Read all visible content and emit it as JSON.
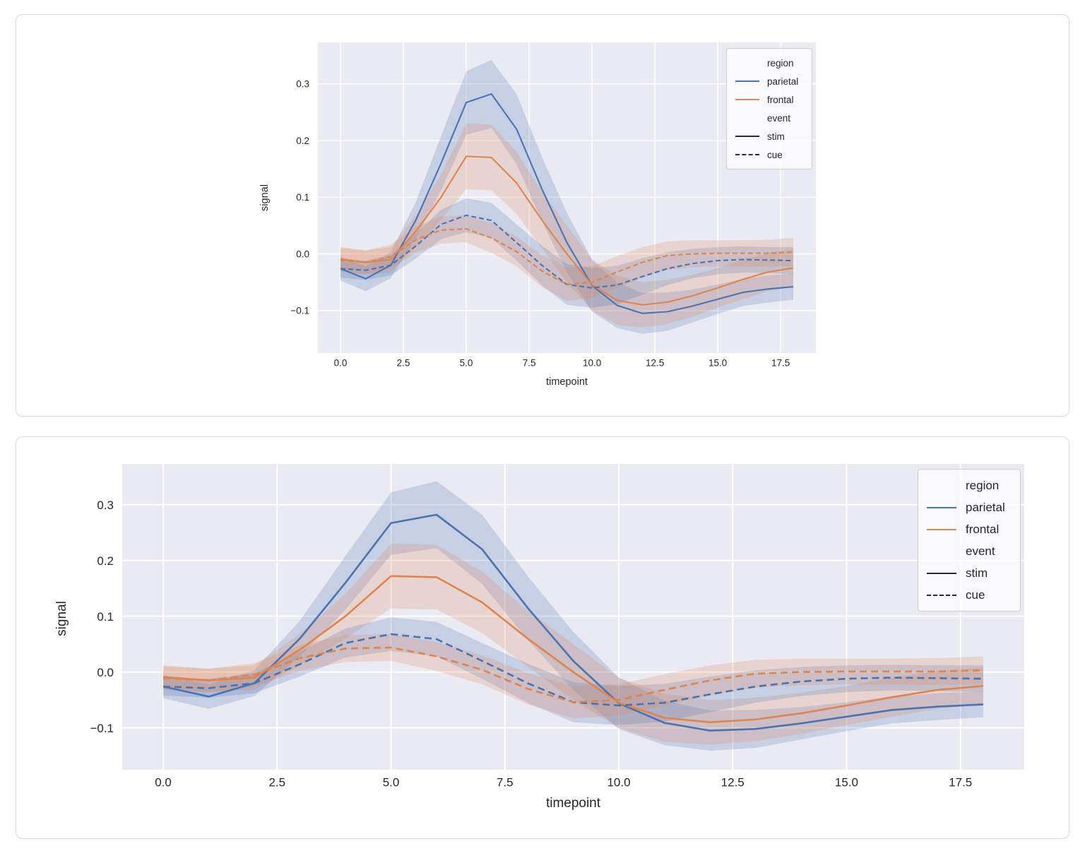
{
  "figure": {
    "panels": [
      {
        "name": "top-chart",
        "description": "small centered line chart"
      },
      {
        "name": "bottom-chart",
        "description": "large full-width line chart"
      }
    ]
  },
  "chart_data": {
    "type": "line",
    "title": "",
    "xlabel": "timepoint",
    "ylabel": "signal",
    "x": [
      0,
      1,
      2,
      3,
      4,
      5,
      6,
      7,
      8,
      9,
      10,
      11,
      12,
      13,
      14,
      15,
      16,
      17,
      18
    ],
    "xlim": [
      -0.9,
      18.9
    ],
    "ylim": [
      -0.175,
      0.373
    ],
    "grid": true,
    "legend_position": "upper right",
    "xtick_values": [
      0,
      2.5,
      5,
      7.5,
      10,
      12.5,
      15,
      17.5
    ],
    "xtick_labels": [
      "0.0",
      "2.5",
      "5.0",
      "7.5",
      "10.0",
      "12.5",
      "15.0",
      "17.5"
    ],
    "ytick_values": [
      -0.1,
      0,
      0.1,
      0.2,
      0.3
    ],
    "ytick_labels": [
      "−0.1",
      "0.0",
      "0.1",
      "0.2",
      "0.3"
    ],
    "colors": {
      "parietal": "#4C72B0",
      "frontal": "#DD8452",
      "legend_line": "#2b2b2b",
      "plot_bg": "#EAEAF2",
      "grid": "#FFFFFF",
      "text": "#262626",
      "band_opacity": 0.22
    },
    "legend": [
      {
        "label": "region",
        "kind": "title"
      },
      {
        "label": "parietal",
        "kind": "line",
        "color": "#4C72B0",
        "dashed": false
      },
      {
        "label": "frontal",
        "kind": "line",
        "color": "#DD8452",
        "dashed": false
      },
      {
        "label": "event",
        "kind": "title"
      },
      {
        "label": "stim",
        "kind": "line",
        "color": "#2b2b2b",
        "dashed": false
      },
      {
        "label": "cue",
        "kind": "line",
        "color": "#2b2b2b",
        "dashed": true
      }
    ],
    "series": [
      {
        "name": "parietal-stim",
        "region": "parietal",
        "event": "stim",
        "color": "#4C72B0",
        "dashed": false,
        "values": [
          -0.026,
          -0.044,
          -0.02,
          0.06,
          0.16,
          0.267,
          0.282,
          0.22,
          0.115,
          0.02,
          -0.056,
          -0.091,
          -0.105,
          -0.102,
          -0.092,
          -0.08,
          -0.068,
          -0.062,
          -0.058
        ],
        "lower": [
          -0.047,
          -0.066,
          -0.043,
          0.028,
          0.112,
          0.21,
          0.222,
          0.158,
          0.058,
          -0.032,
          -0.102,
          -0.131,
          -0.141,
          -0.136,
          -0.121,
          -0.106,
          -0.092,
          -0.086,
          -0.081
        ],
        "upper": [
          -0.005,
          -0.022,
          0.003,
          0.092,
          0.208,
          0.322,
          0.342,
          0.282,
          0.172,
          0.072,
          -0.01,
          -0.051,
          -0.069,
          -0.068,
          -0.063,
          -0.054,
          -0.044,
          -0.038,
          -0.035
        ]
      },
      {
        "name": "frontal-stim",
        "region": "frontal",
        "event": "stim",
        "color": "#DD8452",
        "dashed": false,
        "values": [
          -0.009,
          -0.015,
          -0.01,
          0.04,
          0.1,
          0.172,
          0.17,
          0.125,
          0.06,
          0.0,
          -0.055,
          -0.082,
          -0.09,
          -0.085,
          -0.074,
          -0.06,
          -0.045,
          -0.032,
          -0.025
        ],
        "lower": [
          -0.03,
          -0.036,
          -0.032,
          0.012,
          0.06,
          0.114,
          0.112,
          0.07,
          0.01,
          -0.05,
          -0.1,
          -0.125,
          -0.13,
          -0.124,
          -0.111,
          -0.095,
          -0.08,
          -0.066,
          -0.058
        ],
        "upper": [
          0.012,
          0.006,
          0.012,
          0.068,
          0.14,
          0.23,
          0.228,
          0.18,
          0.11,
          0.05,
          -0.01,
          -0.039,
          -0.05,
          -0.046,
          -0.037,
          -0.025,
          -0.01,
          0.002,
          0.008
        ]
      },
      {
        "name": "parietal-cue",
        "region": "parietal",
        "event": "cue",
        "color": "#4C72B0",
        "dashed": true,
        "values": [
          -0.026,
          -0.029,
          -0.02,
          0.014,
          0.052,
          0.068,
          0.059,
          0.02,
          -0.02,
          -0.054,
          -0.06,
          -0.055,
          -0.04,
          -0.026,
          -0.017,
          -0.012,
          -0.01,
          -0.011,
          -0.012
        ],
        "lower": [
          -0.042,
          -0.046,
          -0.038,
          -0.008,
          0.026,
          0.038,
          0.028,
          -0.012,
          -0.055,
          -0.09,
          -0.095,
          -0.089,
          -0.072,
          -0.055,
          -0.043,
          -0.036,
          -0.033,
          -0.034,
          -0.036
        ],
        "upper": [
          -0.01,
          -0.012,
          -0.002,
          0.036,
          0.078,
          0.098,
          0.09,
          0.052,
          0.015,
          -0.018,
          -0.025,
          -0.021,
          -0.008,
          0.003,
          0.009,
          0.012,
          0.013,
          0.012,
          0.012
        ]
      },
      {
        "name": "frontal-cue",
        "region": "frontal",
        "event": "cue",
        "color": "#DD8452",
        "dashed": true,
        "values": [
          -0.011,
          -0.015,
          -0.005,
          0.025,
          0.042,
          0.044,
          0.028,
          0.004,
          -0.03,
          -0.054,
          -0.05,
          -0.032,
          -0.015,
          -0.003,
          0.0,
          0.001,
          0.001,
          0.001,
          0.003
        ],
        "lower": [
          -0.032,
          -0.036,
          -0.026,
          0.002,
          0.018,
          0.02,
          0.002,
          -0.022,
          -0.058,
          -0.083,
          -0.078,
          -0.06,
          -0.042,
          -0.028,
          -0.024,
          -0.022,
          -0.022,
          -0.023,
          -0.022
        ],
        "upper": [
          0.01,
          0.006,
          0.016,
          0.048,
          0.066,
          0.068,
          0.054,
          0.03,
          -0.002,
          -0.025,
          -0.022,
          -0.004,
          0.012,
          0.022,
          0.024,
          0.024,
          0.024,
          0.025,
          0.028
        ]
      }
    ]
  }
}
